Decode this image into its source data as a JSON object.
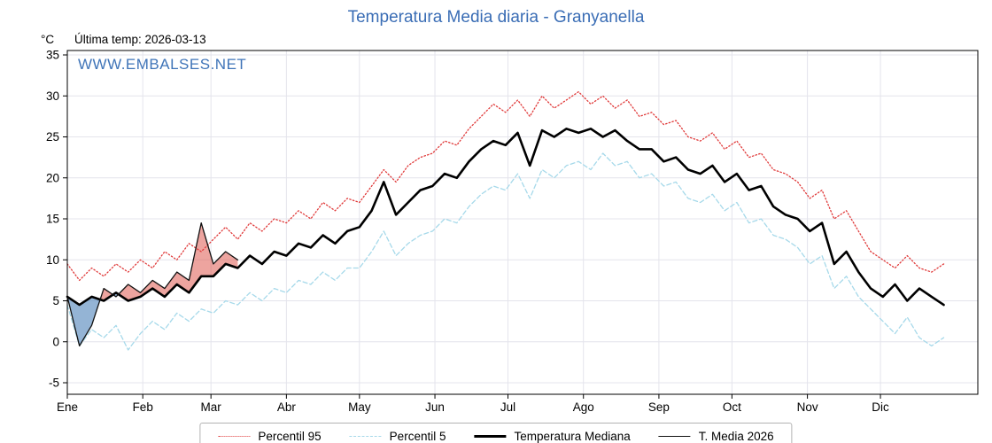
{
  "title": "Temperatura Media diaria - Granyanella",
  "header": {
    "unit": "°C",
    "last_temp": "Última temp: 2026-03-13"
  },
  "watermark": "WWW.EMBALSES.NET",
  "colors": {
    "title": "#3a6db5",
    "watermark": "#3f74b8",
    "grid": "#e4e4ec",
    "axis": "#000000",
    "fill_above": "rgba(222,90,80,0.55)",
    "fill_below": "rgba(90,140,190,0.65)"
  },
  "chart_data": {
    "type": "line",
    "title": "Temperatura Media diaria - Granyanella",
    "xlabel": "",
    "ylabel": "°C",
    "grid": true,
    "legend_position": "bottom",
    "ylim": [
      -6.5,
      35.5
    ],
    "yticks": [
      -5,
      0,
      5,
      10,
      15,
      20,
      25,
      30,
      35
    ],
    "xlim_days": [
      0,
      374
    ],
    "month_labels": [
      "Ene",
      "Feb",
      "Mar",
      "Abr",
      "May",
      "Jun",
      "Jul",
      "Ago",
      "Sep",
      "Oct",
      "Nov",
      "Dic"
    ],
    "month_start_days": [
      0,
      31,
      59,
      90,
      120,
      151,
      181,
      212,
      243,
      273,
      304,
      334
    ],
    "day_step": 5,
    "series": [
      {
        "name": "Percentil 95",
        "key": "p95",
        "color": "#e03a3a",
        "style": "dotted",
        "width": 1.3,
        "values": [
          9.5,
          7.5,
          9.0,
          8.0,
          9.5,
          8.5,
          10.0,
          9.0,
          11.0,
          10.0,
          12.0,
          11.0,
          12.5,
          14.0,
          12.5,
          14.5,
          13.5,
          15.0,
          14.5,
          16.0,
          15.0,
          17.0,
          16.0,
          17.5,
          17.0,
          19.0,
          21.0,
          19.5,
          21.5,
          22.5,
          23.0,
          24.5,
          24.0,
          26.0,
          27.5,
          29.0,
          28.0,
          29.5,
          27.5,
          30.0,
          28.5,
          29.5,
          30.5,
          29.0,
          30.0,
          28.5,
          29.5,
          27.5,
          28.0,
          26.5,
          27.0,
          25.0,
          24.5,
          25.5,
          23.5,
          24.5,
          22.5,
          23.0,
          21.0,
          20.5,
          19.5,
          17.5,
          18.5,
          15.0,
          16.0,
          13.5,
          11.0,
          10.0,
          9.0,
          10.5,
          9.0,
          8.5,
          9.5
        ]
      },
      {
        "name": "Percentil 5",
        "key": "p5",
        "color": "#a6d9ea",
        "style": "dashed",
        "width": 1.3,
        "values": [
          4.5,
          -0.5,
          1.5,
          0.5,
          2.0,
          -1.0,
          1.0,
          2.5,
          1.5,
          3.5,
          2.5,
          4.0,
          3.5,
          5.0,
          4.5,
          6.0,
          5.0,
          6.5,
          6.0,
          7.5,
          7.0,
          8.5,
          7.5,
          9.0,
          9.0,
          11.0,
          13.5,
          10.5,
          12.0,
          13.0,
          13.5,
          15.0,
          14.5,
          16.5,
          18.0,
          19.0,
          18.5,
          20.5,
          17.5,
          21.0,
          20.0,
          21.5,
          22.0,
          21.0,
          23.0,
          21.5,
          22.0,
          20.0,
          20.5,
          19.0,
          19.5,
          17.5,
          17.0,
          18.0,
          16.0,
          17.0,
          14.5,
          15.0,
          13.0,
          12.5,
          11.5,
          9.5,
          10.5,
          6.5,
          8.0,
          5.5,
          4.0,
          2.5,
          1.0,
          3.0,
          0.5,
          -0.5,
          0.5
        ]
      },
      {
        "name": "Temperatura Mediana",
        "key": "median",
        "color": "#000000",
        "style": "solid",
        "width": 2.6,
        "values": [
          5.5,
          4.5,
          5.5,
          5.0,
          6.0,
          5.0,
          5.5,
          6.5,
          5.5,
          7.0,
          6.0,
          8.0,
          8.0,
          9.5,
          9.0,
          10.5,
          9.5,
          11.0,
          10.5,
          12.0,
          11.5,
          13.0,
          12.0,
          13.5,
          14.0,
          16.0,
          19.5,
          15.5,
          17.0,
          18.5,
          19.0,
          20.5,
          20.0,
          22.0,
          23.5,
          24.5,
          24.0,
          25.5,
          21.5,
          25.8,
          25.0,
          26.0,
          25.5,
          26.0,
          25.0,
          25.8,
          24.5,
          23.5,
          23.5,
          22.0,
          22.5,
          21.0,
          20.5,
          21.5,
          19.5,
          20.5,
          18.5,
          19.0,
          16.5,
          15.5,
          15.0,
          13.5,
          14.5,
          9.5,
          11.0,
          8.5,
          6.5,
          5.5,
          7.0,
          5.0,
          6.5,
          5.5,
          4.5
        ]
      },
      {
        "name": "T. Media 2026",
        "key": "t2026",
        "color": "#111111",
        "style": "solid",
        "width": 1.3,
        "values": [
          5.5,
          -0.5,
          2.0,
          6.5,
          5.5,
          7.0,
          6.0,
          7.5,
          6.5,
          8.5,
          7.5,
          14.5,
          9.5,
          11.0,
          10.0
        ]
      }
    ],
    "fills": {
      "between": [
        "t2026",
        "median"
      ],
      "above_meaning": "2026 warmer than median",
      "below_meaning": "2026 colder than median"
    },
    "legend": [
      {
        "label": "Percentil 95",
        "series": "p95"
      },
      {
        "label": "Percentil 5",
        "series": "p5"
      },
      {
        "label": "Temperatura Mediana",
        "series": "median"
      },
      {
        "label": "T. Media 2026",
        "series": "t2026"
      }
    ]
  }
}
